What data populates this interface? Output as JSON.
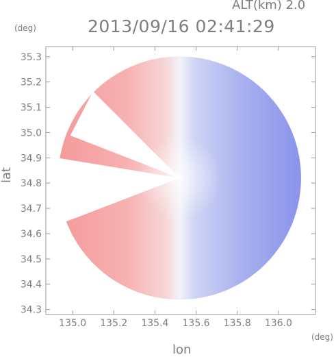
{
  "title": "2013/09/16 02:41:29",
  "altitude_label": "ALT(km) 2.0",
  "chart_data": {
    "type": "heatmap",
    "title": "2013/09/16 02:41:29",
    "annotation": "ALT(km) 2.0",
    "xlabel": "lon",
    "ylabel": "lat",
    "x_unit": "(deg)",
    "y_unit": "(deg)",
    "xlim": [
      134.87,
      136.18
    ],
    "ylim": [
      34.28,
      35.34
    ],
    "x_ticks": [
      135.0,
      135.2,
      135.4,
      135.6,
      135.8,
      136.0
    ],
    "x_tick_labels": [
      "135.0",
      "135.2",
      "135.4",
      "135.6",
      "135.8",
      "136.0"
    ],
    "y_ticks": [
      34.3,
      34.4,
      34.5,
      34.6,
      34.7,
      34.8,
      34.9,
      35.0,
      35.1,
      35.2,
      35.3
    ],
    "y_tick_labels": [
      "34.3",
      "34.4",
      "34.5",
      "34.6",
      "34.7",
      "34.8",
      "34.9",
      "35.0",
      "35.1",
      "35.2",
      "35.3"
    ],
    "radar_center": {
      "lon": 135.52,
      "lat": 34.82
    },
    "radar_radius_deg": 0.59,
    "colormap": {
      "negative": "#6f78e8",
      "zero": "#f6f6fb",
      "positive": "#f08080"
    },
    "grid": false
  }
}
